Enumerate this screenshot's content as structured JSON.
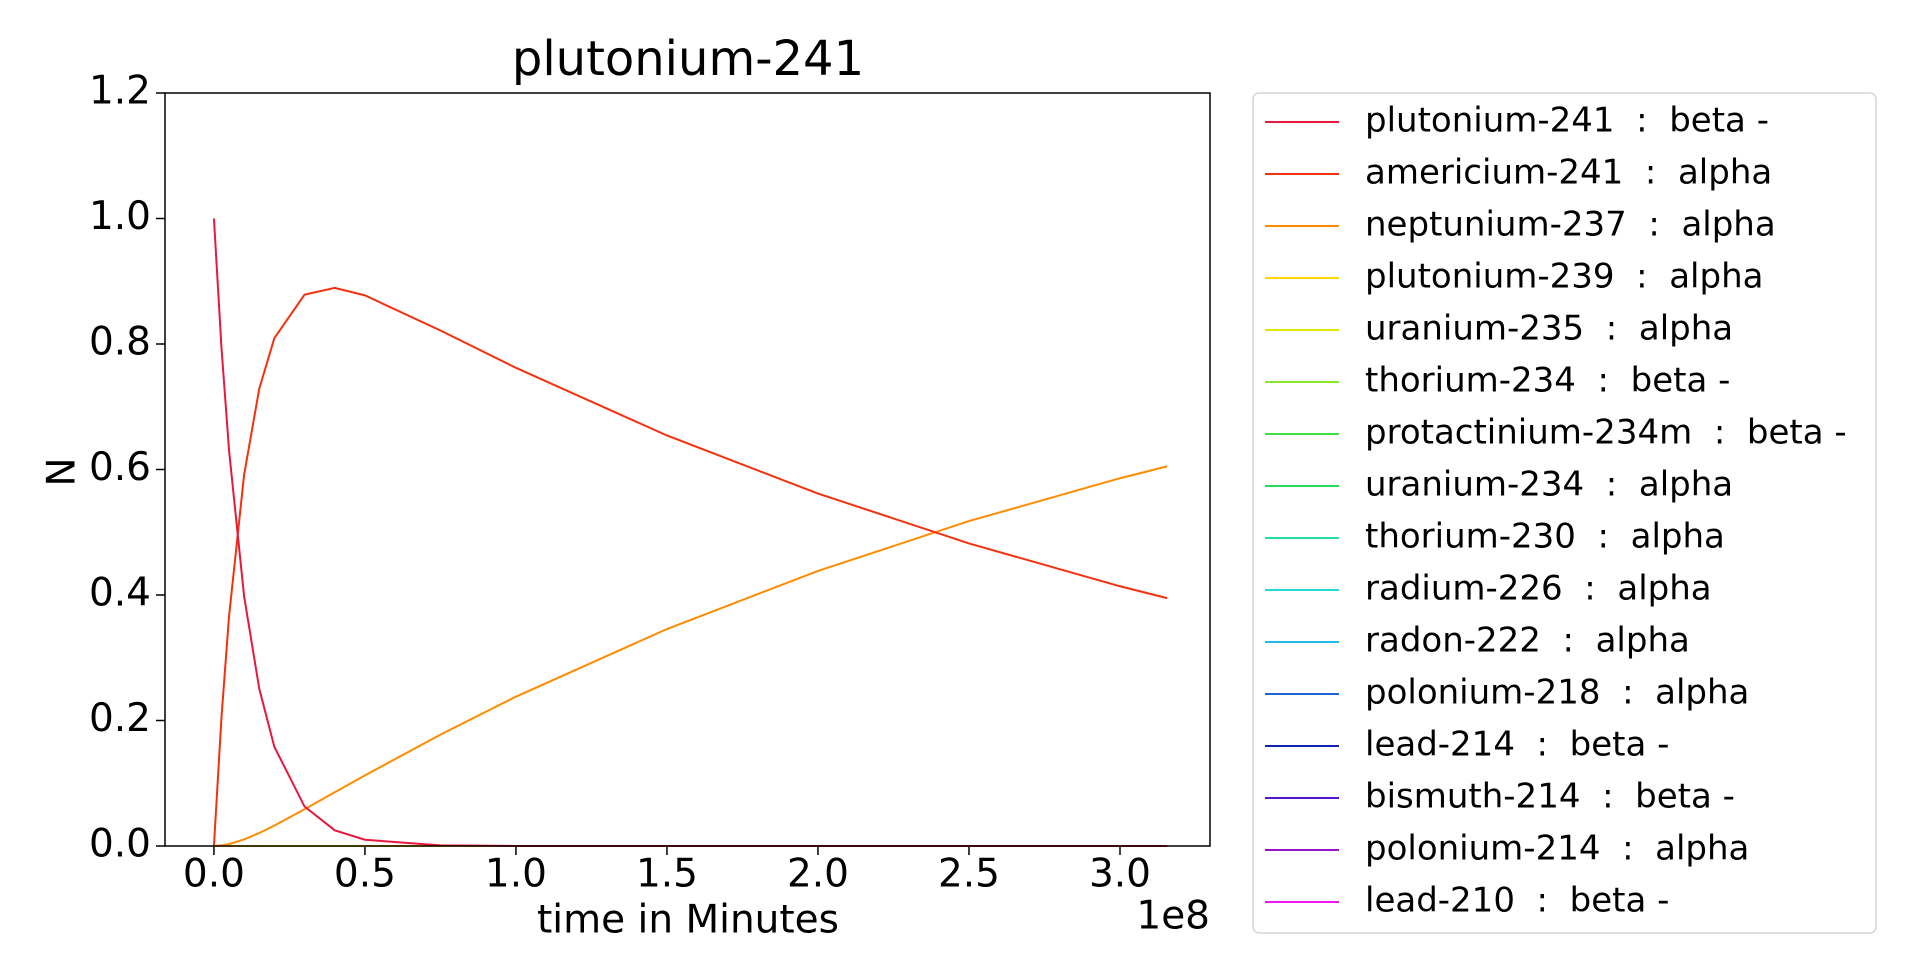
{
  "chart_data": {
    "type": "line",
    "title": "plutonium-241",
    "xlabel": "time in Minutes",
    "ylabel": "N",
    "x_offset_label": "1e8",
    "x": [
      0,
      2500000,
      5000000,
      10000000,
      15000000,
      20000000,
      30000000,
      40000000,
      50000000,
      75000000,
      100000000,
      150000000,
      200000000,
      250000000,
      300000000,
      315600000
    ],
    "xlim": [
      -16200000,
      329800000
    ],
    "xticks": [
      {
        "value": 0,
        "label": "0.0"
      },
      {
        "value": 50000000,
        "label": "0.5"
      },
      {
        "value": 100000000,
        "label": "1.0"
      },
      {
        "value": 150000000,
        "label": "1.5"
      },
      {
        "value": 200000000,
        "label": "2.0"
      },
      {
        "value": 250000000,
        "label": "2.5"
      },
      {
        "value": 300000000,
        "label": "3.0"
      }
    ],
    "ylim": [
      0,
      1.2
    ],
    "yticks": [
      {
        "value": 0,
        "label": "0.0"
      },
      0.2,
      0.4,
      0.6,
      0.8,
      {
        "value": 1,
        "label": "1.0"
      },
      1.2
    ],
    "grid": false,
    "legend": "outside right",
    "series": [
      {
        "name": "plutonium-241  :  beta -",
        "color": "#e8173c",
        "values": [
          1,
          0.794,
          0.6307,
          0.3977,
          0.2508,
          0.1582,
          0.0629,
          0.025,
          0.00995,
          0.001,
          0.0001,
          0,
          0,
          0,
          0,
          0
        ]
      },
      {
        "name": "americium-241  :  alpha",
        "color": "#f5300d",
        "values": [
          0,
          0.205,
          0.366,
          0.5918,
          0.7285,
          0.8093,
          0.8786,
          0.8894,
          0.8775,
          0.8215,
          0.762,
          0.6542,
          0.5617,
          0.4822,
          0.4139,
          0.395
        ]
      },
      {
        "name": "neptunium-237  :  alpha",
        "color": "#ff8c00",
        "values": [
          0,
          0.001,
          0.003,
          0.0105,
          0.0207,
          0.0325,
          0.0585,
          0.0856,
          0.1126,
          0.1775,
          0.238,
          0.3458,
          0.4383,
          0.5178,
          0.5861,
          0.605
        ]
      },
      {
        "name": "plutonium-239  :  alpha",
        "color": "#ffd700",
        "values": [
          0,
          0,
          0,
          0,
          0,
          0,
          0,
          0,
          0,
          0,
          0,
          0,
          0,
          0,
          0,
          0
        ]
      },
      {
        "name": "uranium-235  :  alpha",
        "color": "#e0e800",
        "values": [
          0,
          0,
          0,
          0,
          0,
          0,
          0,
          0,
          0,
          0,
          0,
          0,
          0,
          0,
          0,
          0
        ]
      },
      {
        "name": "thorium-234  :  beta -",
        "color": "#8ae82a",
        "values": [
          0,
          0,
          0,
          0,
          0,
          0,
          0,
          0,
          0,
          0,
          0,
          0,
          0,
          0,
          0,
          0
        ]
      },
      {
        "name": "protactinium-234m  :  beta -",
        "color": "#3ee03e",
        "values": [
          0,
          0,
          0,
          0,
          0,
          0,
          0,
          0,
          0,
          0,
          0,
          0,
          0,
          0,
          0,
          0
        ]
      },
      {
        "name": "uranium-234  :  alpha",
        "color": "#22dc5a",
        "values": [
          0,
          0,
          0,
          0,
          0,
          0,
          0,
          0,
          0,
          0,
          0,
          0,
          0,
          0,
          0,
          0
        ]
      },
      {
        "name": "thorium-230  :  alpha",
        "color": "#22e0a4",
        "values": [
          0,
          0,
          0,
          0,
          0,
          0,
          0,
          0,
          0,
          0,
          0,
          0,
          0,
          0,
          0,
          0
        ]
      },
      {
        "name": "radium-226  :  alpha",
        "color": "#22dcd2",
        "values": [
          0,
          0,
          0,
          0,
          0,
          0,
          0,
          0,
          0,
          0,
          0,
          0,
          0,
          0,
          0,
          0
        ]
      },
      {
        "name": "radon-222  :  alpha",
        "color": "#22bce6",
        "values": [
          0,
          0,
          0,
          0,
          0,
          0,
          0,
          0,
          0,
          0,
          0,
          0,
          0,
          0,
          0,
          0
        ]
      },
      {
        "name": "polonium-218  :  alpha",
        "color": "#1e64d2",
        "values": [
          0,
          0,
          0,
          0,
          0,
          0,
          0,
          0,
          0,
          0,
          0,
          0,
          0,
          0,
          0,
          0
        ]
      },
      {
        "name": "lead-214  :  beta -",
        "color": "#1422b4",
        "values": [
          0,
          0,
          0,
          0,
          0,
          0,
          0,
          0,
          0,
          0,
          0,
          0,
          0,
          0,
          0,
          0
        ]
      },
      {
        "name": "bismuth-214  :  beta -",
        "color": "#5016d2",
        "values": [
          0,
          0,
          0,
          0,
          0,
          0,
          0,
          0,
          0,
          0,
          0,
          0,
          0,
          0,
          0,
          0
        ]
      },
      {
        "name": "polonium-214  :  alpha",
        "color": "#9614c8",
        "values": [
          0,
          0,
          0,
          0,
          0,
          0,
          0,
          0,
          0,
          0,
          0,
          0,
          0,
          0,
          0,
          0
        ]
      },
      {
        "name": "lead-210  :  beta -",
        "color": "#f014f0",
        "values": [
          0,
          0,
          0,
          0,
          0,
          0,
          0,
          0,
          0,
          0,
          0,
          0,
          0,
          0,
          0,
          0
        ]
      }
    ]
  }
}
